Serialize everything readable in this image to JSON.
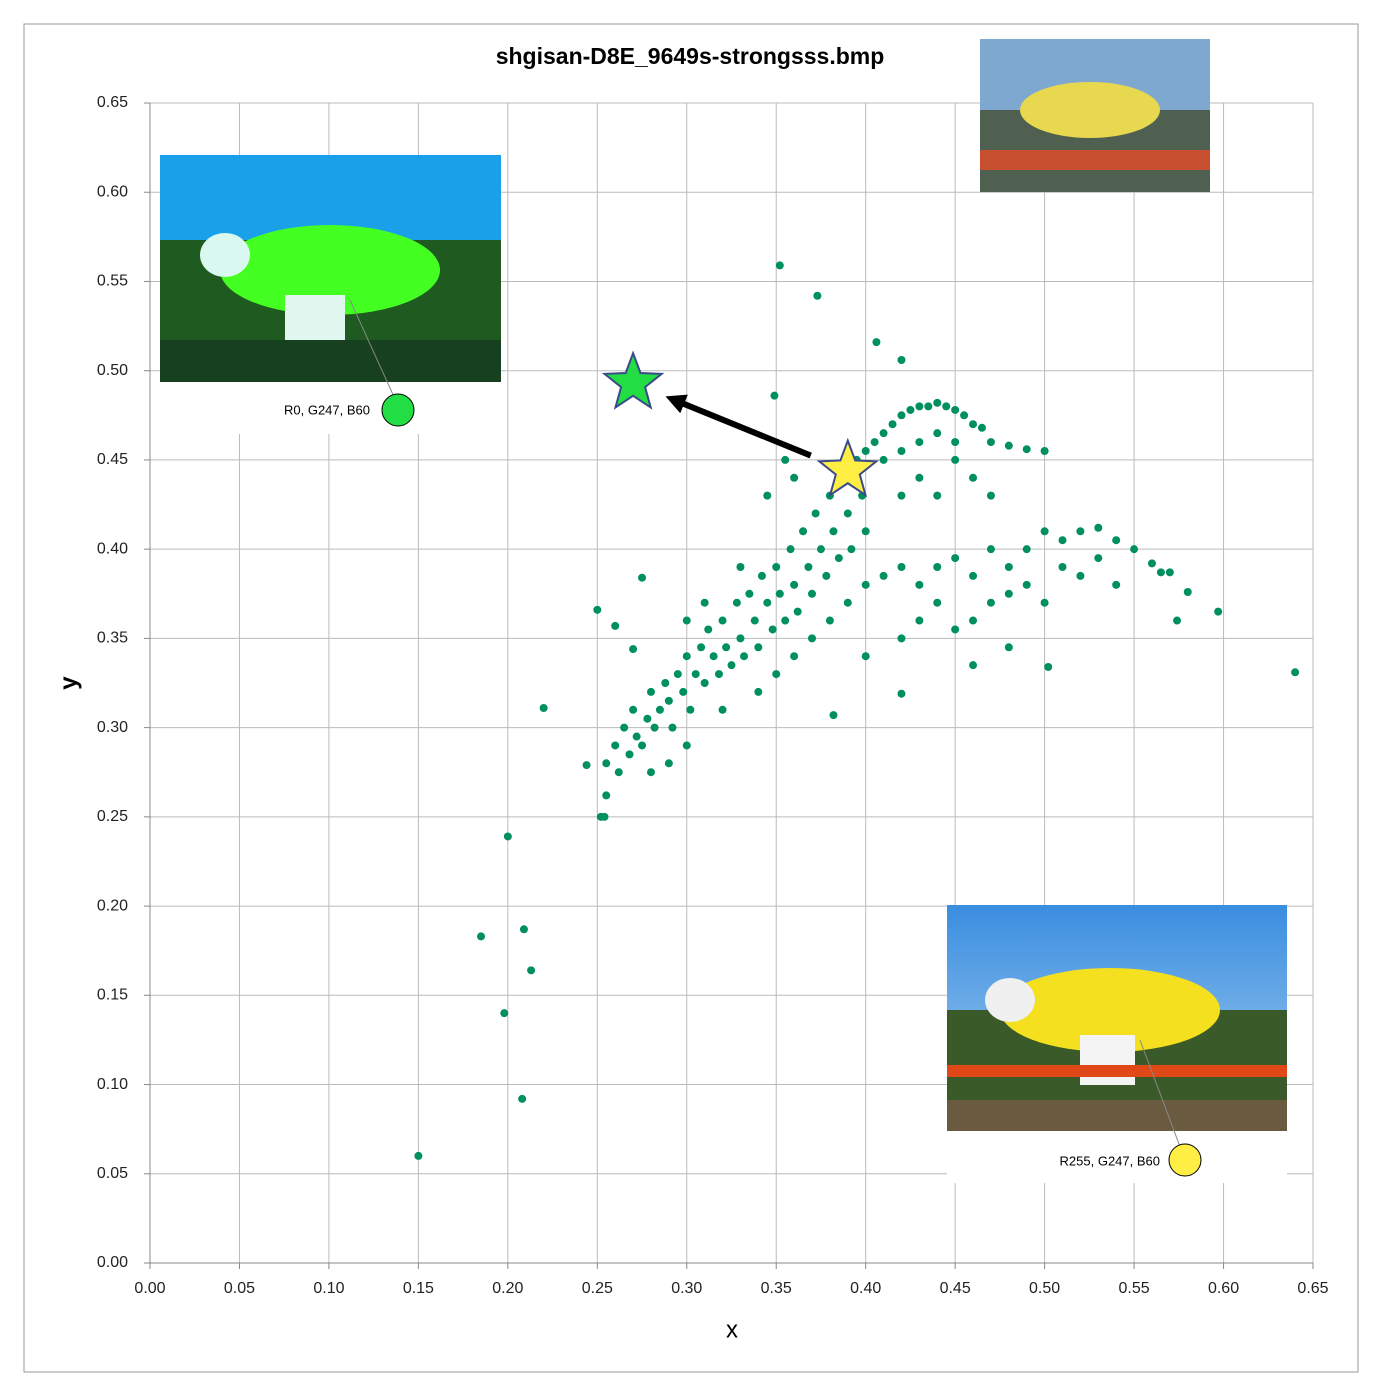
{
  "chart_data": {
    "type": "scatter",
    "title": "shgisan-D8E_9649s-strongsss.bmp",
    "x_label": "x",
    "y_label": "y",
    "color": "#009060",
    "grid": true,
    "xlim": [
      0,
      0.65
    ],
    "ylim": [
      0,
      0.65
    ],
    "xticks": [
      {
        "value": 0,
        "label": "0.00"
      },
      {
        "value": 0.05,
        "label": "0.05"
      },
      {
        "value": 0.1,
        "label": "0.10"
      },
      {
        "value": 0.15,
        "label": "0.15"
      },
      {
        "value": 0.2,
        "label": "0.20"
      },
      {
        "value": 0.25,
        "label": "0.25"
      },
      {
        "value": 0.3,
        "label": "0.30"
      },
      {
        "value": 0.35,
        "label": "0.35"
      },
      {
        "value": 0.4,
        "label": "0.40"
      },
      {
        "value": 0.45,
        "label": "0.45"
      },
      {
        "value": 0.5,
        "label": "0.50"
      },
      {
        "value": 0.55,
        "label": "0.55"
      },
      {
        "value": 0.6,
        "label": "0.60"
      },
      {
        "value": 0.65,
        "label": "0.65"
      }
    ],
    "yticks": [
      {
        "value": 0,
        "label": "0.00"
      },
      {
        "value": 0.05,
        "label": "0.05"
      },
      {
        "value": 0.1,
        "label": "0.10"
      },
      {
        "value": 0.15,
        "label": "0.15"
      },
      {
        "value": 0.2,
        "label": "0.20"
      },
      {
        "value": 0.25,
        "label": "0.25"
      },
      {
        "value": 0.3,
        "label": "0.30"
      },
      {
        "value": 0.35,
        "label": "0.35"
      },
      {
        "value": 0.4,
        "label": "0.40"
      },
      {
        "value": 0.45,
        "label": "0.45"
      },
      {
        "value": 0.5,
        "label": "0.50"
      },
      {
        "value": 0.55,
        "label": "0.55"
      },
      {
        "value": 0.6,
        "label": "0.60"
      },
      {
        "value": 0.65,
        "label": "0.65"
      }
    ],
    "x": [
      0.15,
      0.185,
      0.198,
      0.2,
      0.208,
      0.209,
      0.213,
      0.22,
      0.244,
      0.25,
      0.252,
      0.254,
      0.255,
      0.26,
      0.27,
      0.275,
      0.352,
      0.373,
      0.406,
      0.42,
      0.349,
      0.382,
      0.42,
      0.46,
      0.48,
      0.502,
      0.574,
      0.597,
      0.64,
      0.58,
      0.565,
      0.255,
      0.26,
      0.262,
      0.265,
      0.268,
      0.27,
      0.272,
      0.275,
      0.278,
      0.28,
      0.282,
      0.285,
      0.288,
      0.29,
      0.292,
      0.295,
      0.298,
      0.3,
      0.302,
      0.305,
      0.308,
      0.31,
      0.312,
      0.315,
      0.318,
      0.32,
      0.322,
      0.325,
      0.328,
      0.33,
      0.332,
      0.335,
      0.338,
      0.34,
      0.342,
      0.345,
      0.348,
      0.35,
      0.352,
      0.355,
      0.358,
      0.36,
      0.362,
      0.365,
      0.368,
      0.37,
      0.372,
      0.375,
      0.378,
      0.38,
      0.382,
      0.385,
      0.388,
      0.39,
      0.392,
      0.395,
      0.398,
      0.4,
      0.36,
      0.355,
      0.345,
      0.33,
      0.31,
      0.3,
      0.32,
      0.34,
      0.35,
      0.36,
      0.37,
      0.38,
      0.39,
      0.3,
      0.29,
      0.28,
      0.4,
      0.405,
      0.41,
      0.415,
      0.42,
      0.425,
      0.43,
      0.435,
      0.44,
      0.445,
      0.45,
      0.455,
      0.46,
      0.465,
      0.47,
      0.48,
      0.49,
      0.5,
      0.41,
      0.42,
      0.43,
      0.44,
      0.45,
      0.43,
      0.44,
      0.42,
      0.45,
      0.46,
      0.47,
      0.4,
      0.41,
      0.42,
      0.43,
      0.44,
      0.45,
      0.46,
      0.47,
      0.48,
      0.49,
      0.5,
      0.51,
      0.52,
      0.53,
      0.54,
      0.55,
      0.56,
      0.57,
      0.44,
      0.46,
      0.48,
      0.5,
      0.52,
      0.54,
      0.42,
      0.4,
      0.43,
      0.45,
      0.47,
      0.49,
      0.51,
      0.53
    ],
    "values": [
      0.06,
      0.183,
      0.14,
      0.239,
      0.092,
      0.187,
      0.164,
      0.311,
      0.279,
      0.366,
      0.25,
      0.25,
      0.262,
      0.357,
      0.344,
      0.384,
      0.559,
      0.542,
      0.516,
      0.506,
      0.486,
      0.307,
      0.319,
      0.335,
      0.345,
      0.334,
      0.36,
      0.365,
      0.331,
      0.376,
      0.387,
      0.28,
      0.29,
      0.275,
      0.3,
      0.285,
      0.31,
      0.295,
      0.29,
      0.305,
      0.32,
      0.3,
      0.31,
      0.325,
      0.315,
      0.3,
      0.33,
      0.32,
      0.34,
      0.31,
      0.33,
      0.345,
      0.325,
      0.355,
      0.34,
      0.33,
      0.36,
      0.345,
      0.335,
      0.37,
      0.35,
      0.34,
      0.375,
      0.36,
      0.345,
      0.385,
      0.37,
      0.355,
      0.39,
      0.375,
      0.36,
      0.4,
      0.38,
      0.365,
      0.41,
      0.39,
      0.375,
      0.42,
      0.4,
      0.385,
      0.43,
      0.41,
      0.395,
      0.44,
      0.42,
      0.4,
      0.45,
      0.43,
      0.41,
      0.44,
      0.45,
      0.43,
      0.39,
      0.37,
      0.36,
      0.31,
      0.32,
      0.33,
      0.34,
      0.35,
      0.36,
      0.37,
      0.29,
      0.28,
      0.275,
      0.455,
      0.46,
      0.465,
      0.47,
      0.475,
      0.478,
      0.48,
      0.48,
      0.482,
      0.48,
      0.478,
      0.475,
      0.47,
      0.468,
      0.46,
      0.458,
      0.456,
      0.455,
      0.45,
      0.455,
      0.46,
      0.465,
      0.46,
      0.44,
      0.43,
      0.43,
      0.45,
      0.44,
      0.43,
      0.38,
      0.385,
      0.39,
      0.38,
      0.39,
      0.395,
      0.385,
      0.4,
      0.39,
      0.4,
      0.41,
      0.405,
      0.41,
      0.412,
      0.405,
      0.4,
      0.392,
      0.387,
      0.37,
      0.36,
      0.375,
      0.37,
      0.385,
      0.38,
      0.35,
      0.34,
      0.36,
      0.355,
      0.37,
      0.38,
      0.39,
      0.395
    ],
    "markers": [
      {
        "x": 0.27,
        "y": 0.493,
        "color": "#22dd44"
      },
      {
        "x": 0.39,
        "y": 0.444,
        "color": "#ffee44"
      }
    ],
    "annotations": [
      {
        "text": "R0, G247, B60",
        "color": "#22dd44"
      },
      {
        "text": "R255, G247, B60",
        "color": "#ffee44"
      }
    ]
  }
}
